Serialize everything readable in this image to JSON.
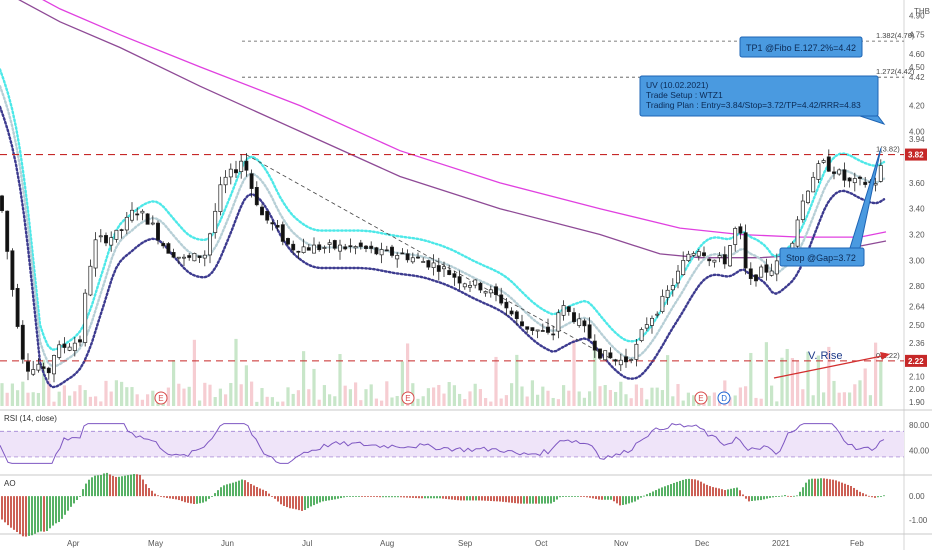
{
  "currency": "THB",
  "chart_data": [
    {
      "type": "candlestick",
      "title": "",
      "x_ticks": [
        "Apr",
        "May",
        "Jun",
        "Jul",
        "Aug",
        "Sep",
        "Oct",
        "Nov",
        "Dec",
        "2021",
        "Feb"
      ],
      "y_ticks": [
        "4.90",
        "4.75",
        "4.60",
        "4.50",
        "4.42",
        "4.20",
        "4.00",
        "3.94",
        "3.82",
        "3.60",
        "3.40",
        "3.20",
        "3.00",
        "2.80",
        "2.64",
        "2.50",
        "2.36",
        "2.22",
        "2.10",
        "2.00",
        "1.90"
      ],
      "ylim": [
        1.87,
        4.98
      ],
      "last_price": "3.82",
      "support_price": "2.22",
      "fib_levels": [
        {
          "label": "1.382(4.70)",
          "value": 4.7
        },
        {
          "label": "1.272(4.42)",
          "value": 4.42
        },
        {
          "label": "1(3.82)",
          "value": 3.82
        },
        {
          "label": "0(2.22)",
          "value": 2.22
        }
      ],
      "moving_averages": [
        {
          "color": "#e040e0",
          "note": "long MA (pink)"
        },
        {
          "color": "#8e4a96",
          "note": "long MA (purple)"
        },
        {
          "color": "#4de8e8",
          "note": "short MA (cyan dots)"
        },
        {
          "color": "#3d3b8f",
          "note": "short MA (navy dots)"
        }
      ],
      "annotations": {
        "tp_box": "TP1 @Fibo E.127.2%=4.42",
        "setup_box": {
          "line1": "UV (10.02.2021)",
          "line2": "Trade Setup : WTZ1",
          "line3": "Trading Plan : Entry=3.84/Stop=3.72/TP=4.42/RRR=4.83"
        },
        "stop_box": "Stop @Gap=3.72",
        "rise_label": "V. Rise",
        "event_markers": [
          "E",
          "E",
          "E",
          "D"
        ]
      }
    },
    {
      "type": "line",
      "title": "RSI (14, close)",
      "y_ticks": [
        "80.00",
        "40.00"
      ],
      "ylim": [
        5,
        100
      ],
      "band": [
        30,
        70
      ]
    },
    {
      "type": "bar",
      "title": "AO",
      "y_ticks": [
        "0.00",
        "-1.00"
      ],
      "ylim": [
        -1.5,
        0.8
      ]
    }
  ]
}
